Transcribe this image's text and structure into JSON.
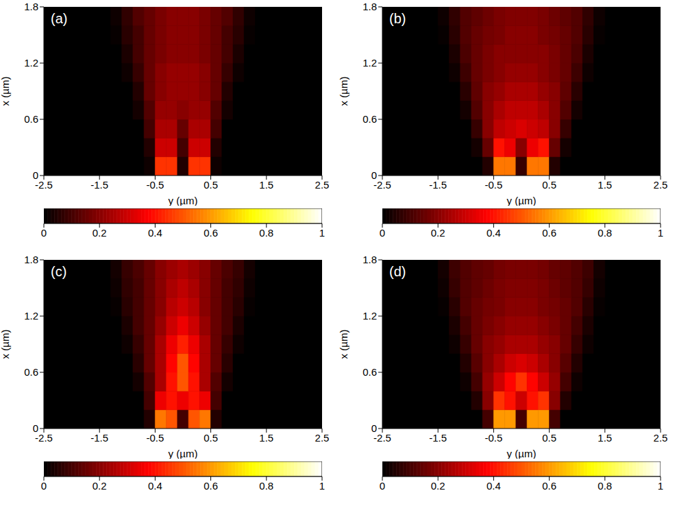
{
  "chart_data": [
    {
      "type": "heatmap",
      "title": "(a)",
      "x_label": "y (µm)",
      "y_label": "x (µm)",
      "xlim": [
        -2.5,
        2.5
      ],
      "xticks": [
        -2.5,
        -1.5,
        -0.5,
        0.5,
        1.5,
        2.5
      ],
      "ylim": [
        0,
        1.8
      ],
      "yticks": [
        0,
        0.6,
        1.2,
        1.8
      ],
      "x_edges": [
        -1.5,
        -1.3,
        -1.1,
        -0.9,
        -0.7,
        -0.5,
        -0.3,
        -0.1,
        0.1,
        0.3,
        0.5,
        0.7,
        0.9,
        1.1,
        1.3,
        1.5
      ],
      "y_edges": [
        0,
        0.2,
        0.4,
        0.6,
        0.8,
        1.0,
        1.2,
        1.4,
        1.6,
        1.8
      ],
      "cells": [
        [
          0,
          0,
          0,
          0,
          0.02,
          0.45,
          0.45,
          0.05,
          0.45,
          0.45,
          0.02,
          0,
          0,
          0,
          0
        ],
        [
          0,
          0,
          0,
          0,
          0.05,
          0.3,
          0.3,
          0.1,
          0.3,
          0.3,
          0.05,
          0,
          0,
          0,
          0
        ],
        [
          0,
          0,
          0,
          0,
          0.1,
          0.25,
          0.25,
          0.15,
          0.25,
          0.25,
          0.1,
          0,
          0,
          0,
          0
        ],
        [
          0,
          0,
          0,
          0.03,
          0.12,
          0.22,
          0.22,
          0.2,
          0.22,
          0.22,
          0.12,
          0.03,
          0,
          0,
          0
        ],
        [
          0,
          0,
          0,
          0.05,
          0.15,
          0.2,
          0.22,
          0.22,
          0.22,
          0.2,
          0.15,
          0.05,
          0,
          0,
          0
        ],
        [
          0,
          0,
          0.02,
          0.08,
          0.15,
          0.2,
          0.22,
          0.22,
          0.22,
          0.2,
          0.15,
          0.08,
          0.02,
          0,
          0
        ],
        [
          0,
          0,
          0.04,
          0.1,
          0.15,
          0.18,
          0.2,
          0.2,
          0.2,
          0.18,
          0.15,
          0.1,
          0.04,
          0,
          0
        ],
        [
          0,
          0.01,
          0.06,
          0.1,
          0.15,
          0.18,
          0.2,
          0.2,
          0.2,
          0.18,
          0.15,
          0.1,
          0.06,
          0.01,
          0
        ],
        [
          0,
          0.02,
          0.07,
          0.12,
          0.15,
          0.18,
          0.2,
          0.2,
          0.2,
          0.18,
          0.15,
          0.12,
          0.07,
          0.02,
          0
        ]
      ],
      "colorbar_lim": [
        0,
        1
      ],
      "colorbar_ticks": [
        0,
        0.2,
        0.4,
        0.6,
        0.8,
        1
      ]
    },
    {
      "type": "heatmap",
      "title": "(b)",
      "x_label": "y (µm)",
      "y_label": "x (µm)",
      "xlim": [
        -2.5,
        2.5
      ],
      "xticks": [
        -2.5,
        -1.5,
        -0.5,
        0.5,
        1.5,
        2.5
      ],
      "ylim": [
        0,
        1.8
      ],
      "yticks": [
        0,
        0.6,
        1.2,
        1.8
      ],
      "x_edges": [
        -1.5,
        -1.3,
        -1.1,
        -0.9,
        -0.7,
        -0.5,
        -0.3,
        -0.1,
        0.1,
        0.3,
        0.5,
        0.7,
        0.9,
        1.1,
        1.3,
        1.5
      ],
      "y_edges": [
        0,
        0.2,
        0.4,
        0.6,
        0.8,
        1.0,
        1.2,
        1.4,
        1.6,
        1.8
      ],
      "cells": [
        [
          0,
          0,
          0,
          0,
          0.05,
          0.55,
          0.55,
          0.08,
          0.55,
          0.55,
          0.05,
          0,
          0,
          0,
          0
        ],
        [
          0,
          0,
          0,
          0.03,
          0.15,
          0.4,
          0.35,
          0.2,
          0.35,
          0.4,
          0.15,
          0.03,
          0,
          0,
          0
        ],
        [
          0,
          0,
          0,
          0.08,
          0.2,
          0.28,
          0.3,
          0.32,
          0.3,
          0.28,
          0.2,
          0.08,
          0,
          0,
          0
        ],
        [
          0,
          0,
          0.03,
          0.12,
          0.2,
          0.25,
          0.28,
          0.28,
          0.28,
          0.25,
          0.2,
          0.12,
          0.03,
          0,
          0
        ],
        [
          0,
          0,
          0.06,
          0.14,
          0.2,
          0.22,
          0.25,
          0.25,
          0.25,
          0.22,
          0.2,
          0.14,
          0.06,
          0,
          0
        ],
        [
          0,
          0.02,
          0.09,
          0.15,
          0.18,
          0.2,
          0.22,
          0.22,
          0.22,
          0.2,
          0.18,
          0.15,
          0.09,
          0.02,
          0
        ],
        [
          0,
          0.04,
          0.11,
          0.15,
          0.18,
          0.2,
          0.2,
          0.2,
          0.2,
          0.2,
          0.18,
          0.15,
          0.11,
          0.04,
          0
        ],
        [
          0.01,
          0.06,
          0.12,
          0.15,
          0.17,
          0.18,
          0.2,
          0.2,
          0.2,
          0.18,
          0.17,
          0.15,
          0.12,
          0.06,
          0.01
        ],
        [
          0.02,
          0.07,
          0.12,
          0.14,
          0.16,
          0.18,
          0.19,
          0.19,
          0.19,
          0.18,
          0.16,
          0.14,
          0.12,
          0.07,
          0.02
        ]
      ],
      "colorbar_lim": [
        0,
        1
      ],
      "colorbar_ticks": [
        0,
        0.2,
        0.4,
        0.6,
        0.8,
        1
      ]
    },
    {
      "type": "heatmap",
      "title": "(c)",
      "x_label": "y (µm)",
      "y_label": "x (µm)",
      "xlim": [
        -2.5,
        2.5
      ],
      "xticks": [
        -2.5,
        -1.5,
        -0.5,
        0.5,
        1.5,
        2.5
      ],
      "ylim": [
        0,
        1.8
      ],
      "yticks": [
        0,
        0.6,
        1.2,
        1.8
      ],
      "x_edges": [
        -1.5,
        -1.3,
        -1.1,
        -0.9,
        -0.7,
        -0.5,
        -0.3,
        -0.1,
        0.1,
        0.3,
        0.5,
        0.7,
        0.9,
        1.1,
        1.3,
        1.5
      ],
      "y_edges": [
        0,
        0.2,
        0.4,
        0.6,
        0.8,
        1.0,
        1.2,
        1.4,
        1.6,
        1.8
      ],
      "cells": [
        [
          0,
          0,
          0,
          0,
          0.05,
          0.55,
          0.5,
          0.1,
          0.5,
          0.55,
          0.05,
          0,
          0,
          0,
          0
        ],
        [
          0,
          0,
          0,
          0,
          0.1,
          0.35,
          0.4,
          0.35,
          0.4,
          0.35,
          0.1,
          0,
          0,
          0,
          0
        ],
        [
          0,
          0,
          0,
          0.03,
          0.12,
          0.25,
          0.4,
          0.5,
          0.4,
          0.25,
          0.12,
          0.03,
          0,
          0,
          0
        ],
        [
          0,
          0,
          0,
          0.06,
          0.15,
          0.25,
          0.38,
          0.5,
          0.38,
          0.25,
          0.15,
          0.06,
          0,
          0,
          0
        ],
        [
          0,
          0,
          0.02,
          0.08,
          0.15,
          0.25,
          0.35,
          0.42,
          0.35,
          0.25,
          0.15,
          0.08,
          0.02,
          0,
          0
        ],
        [
          0,
          0,
          0.04,
          0.1,
          0.15,
          0.22,
          0.3,
          0.35,
          0.3,
          0.22,
          0.15,
          0.1,
          0.04,
          0,
          0
        ],
        [
          0,
          0.01,
          0.06,
          0.1,
          0.15,
          0.2,
          0.27,
          0.3,
          0.27,
          0.2,
          0.15,
          0.1,
          0.06,
          0.01,
          0
        ],
        [
          0,
          0.02,
          0.07,
          0.1,
          0.15,
          0.2,
          0.25,
          0.28,
          0.25,
          0.2,
          0.15,
          0.1,
          0.07,
          0.02,
          0
        ],
        [
          0,
          0.03,
          0.08,
          0.11,
          0.15,
          0.2,
          0.23,
          0.25,
          0.23,
          0.2,
          0.15,
          0.11,
          0.08,
          0.03,
          0
        ]
      ],
      "colorbar_lim": [
        0,
        1
      ],
      "colorbar_ticks": [
        0,
        0.2,
        0.4,
        0.6,
        0.8,
        1
      ]
    },
    {
      "type": "heatmap",
      "title": "(d)",
      "x_label": "y (µm)",
      "y_label": "x (µm)",
      "xlim": [
        -2.5,
        2.5
      ],
      "xticks": [
        -2.5,
        -1.5,
        -0.5,
        0.5,
        1.5,
        2.5
      ],
      "ylim": [
        0,
        1.8
      ],
      "yticks": [
        0,
        0.6,
        1.2,
        1.8
      ],
      "x_edges": [
        -1.5,
        -1.3,
        -1.1,
        -0.9,
        -0.7,
        -0.5,
        -0.3,
        -0.1,
        0.1,
        0.3,
        0.5,
        0.7,
        0.9,
        1.1,
        1.3,
        1.5
      ],
      "y_edges": [
        0,
        0.2,
        0.4,
        0.6,
        0.8,
        1.0,
        1.2,
        1.4,
        1.6,
        1.8
      ],
      "cells": [
        [
          0,
          0,
          0,
          0,
          0.1,
          0.6,
          0.6,
          0.1,
          0.6,
          0.6,
          0.1,
          0,
          0,
          0,
          0
        ],
        [
          0,
          0,
          0,
          0.05,
          0.2,
          0.45,
          0.4,
          0.3,
          0.4,
          0.45,
          0.2,
          0.05,
          0,
          0,
          0
        ],
        [
          0,
          0,
          0.02,
          0.1,
          0.22,
          0.3,
          0.38,
          0.45,
          0.38,
          0.3,
          0.22,
          0.1,
          0.02,
          0,
          0
        ],
        [
          0,
          0,
          0.05,
          0.13,
          0.2,
          0.25,
          0.3,
          0.32,
          0.3,
          0.25,
          0.2,
          0.13,
          0.05,
          0,
          0
        ],
        [
          0,
          0.02,
          0.08,
          0.15,
          0.2,
          0.22,
          0.25,
          0.25,
          0.25,
          0.22,
          0.2,
          0.15,
          0.08,
          0.02,
          0
        ],
        [
          0,
          0.04,
          0.1,
          0.15,
          0.18,
          0.2,
          0.22,
          0.22,
          0.22,
          0.2,
          0.18,
          0.15,
          0.1,
          0.04,
          0
        ],
        [
          0.01,
          0.06,
          0.12,
          0.15,
          0.17,
          0.18,
          0.2,
          0.2,
          0.2,
          0.18,
          0.17,
          0.15,
          0.12,
          0.06,
          0.01
        ],
        [
          0.02,
          0.08,
          0.12,
          0.14,
          0.16,
          0.18,
          0.19,
          0.19,
          0.19,
          0.18,
          0.16,
          0.14,
          0.12,
          0.08,
          0.02
        ],
        [
          0.03,
          0.09,
          0.12,
          0.14,
          0.15,
          0.17,
          0.18,
          0.18,
          0.18,
          0.17,
          0.15,
          0.14,
          0.12,
          0.09,
          0.03
        ]
      ],
      "colorbar_lim": [
        0,
        1
      ],
      "colorbar_ticks": [
        0,
        0.2,
        0.4,
        0.6,
        0.8,
        1
      ]
    }
  ]
}
